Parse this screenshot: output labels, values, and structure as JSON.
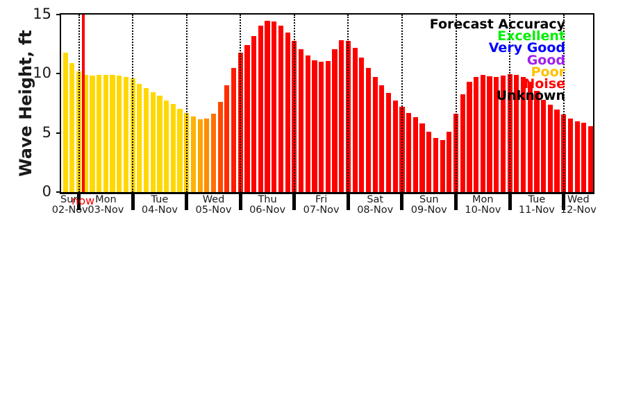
{
  "figure": {
    "background": "#ffffff",
    "now_marker": {
      "label": "now",
      "color": "#ff0000"
    }
  },
  "legend": {
    "title": "Forecast Accuracy",
    "title_color": "#000000",
    "items": [
      {
        "label": "Excellent",
        "color": "#00ee00"
      },
      {
        "label": "Very Good",
        "color": "#0000ff"
      },
      {
        "label": "Good",
        "color": "#a020f0"
      },
      {
        "label": "Poor",
        "color": "#ffc000"
      },
      {
        "label": "Noise",
        "color": "#ff0000"
      },
      {
        "label": "Unknown",
        "color": "#000000"
      }
    ]
  },
  "chart_data": {
    "type": "bar",
    "title": "",
    "xlabel": "",
    "ylabel": "Wave Height, ft",
    "ylim": [
      0,
      15
    ],
    "yticks": [
      0,
      5,
      10,
      15
    ],
    "grid": "vertical dotted lines at day boundaries",
    "legend_position": "upper right",
    "x_interval": "3-hourly wave height forecast bars",
    "days": [
      {
        "name": "Sun",
        "date": "02-Nov"
      },
      {
        "name": "Mon",
        "date": "03-Nov"
      },
      {
        "name": "Tue",
        "date": "04-Nov"
      },
      {
        "name": "Wed",
        "date": "05-Nov"
      },
      {
        "name": "Thu",
        "date": "06-Nov"
      },
      {
        "name": "Fri",
        "date": "07-Nov"
      },
      {
        "name": "Sat",
        "date": "08-Nov"
      },
      {
        "name": "Sun",
        "date": "09-Nov"
      },
      {
        "name": "Mon",
        "date": "10-Nov"
      },
      {
        "name": "Tue",
        "date": "11-Nov"
      },
      {
        "name": "Wed",
        "date": "12-Nov"
      }
    ],
    "values": [
      11.8,
      10.9,
      10.2,
      9.9,
      9.85,
      9.9,
      9.9,
      9.9,
      9.85,
      9.75,
      9.6,
      9.15,
      8.8,
      8.45,
      8.15,
      7.75,
      7.45,
      7.05,
      6.7,
      6.4,
      6.15,
      6.2,
      6.65,
      7.6,
      9.0,
      10.5,
      11.75,
      12.45,
      13.2,
      14.05,
      14.45,
      14.4,
      14.05,
      13.5,
      12.75,
      12.05,
      11.55,
      11.15,
      11.0,
      11.1,
      12.05,
      12.85,
      12.75,
      12.2,
      11.35,
      10.5,
      9.7,
      9.0,
      8.4,
      7.75,
      7.2,
      6.7,
      6.3,
      5.8,
      5.1,
      4.6,
      4.4,
      5.1,
      6.65,
      8.25,
      9.3,
      9.75,
      9.9,
      9.8,
      9.7,
      9.85,
      9.95,
      9.9,
      9.7,
      9.3,
      8.55,
      7.8,
      7.4,
      7.0,
      6.55,
      6.2,
      6.0,
      5.85,
      5.55
    ],
    "bar_colors": [
      "#ffd800",
      "#ffd800",
      "#ffd800",
      "#ffd800",
      "#ffd800",
      "#ffd800",
      "#ffd800",
      "#ffd800",
      "#ffd800",
      "#ffd800",
      "#ffd800",
      "#ffd800",
      "#ffd800",
      "#ffd800",
      "#ffd800",
      "#ffd800",
      "#ffd800",
      "#ffd800",
      "#ffcc00",
      "#ffb300",
      "#ffa500",
      "#ff8c00",
      "#ff7000",
      "#ff4800",
      "#ff2d00",
      "#ff1c00",
      "#ff0f00",
      "#ff0500",
      "#ff0000",
      "#ff0000",
      "#ff0000",
      "#ff0000",
      "#ff0000",
      "#ff0000",
      "#ff0000",
      "#ff0000",
      "#ff0000",
      "#ff0000",
      "#ff0000",
      "#ff0000",
      "#ff0000",
      "#ff0000",
      "#ff0000",
      "#ff0000",
      "#ff0000",
      "#ff0000",
      "#ff0000",
      "#ff0000",
      "#ff0000",
      "#ff0000",
      "#ff0000",
      "#ff0000",
      "#ff0000",
      "#ff0000",
      "#ff0000",
      "#ff0000",
      "#ff0000",
      "#ff0000",
      "#ff0000",
      "#ff0000",
      "#ff0000",
      "#ff0000",
      "#ff0000",
      "#ff0000",
      "#ff0000",
      "#ff0000",
      "#ff0000",
      "#ff0000",
      "#ff0000",
      "#ff0000",
      "#ff0000",
      "#ff0000",
      "#ff0000",
      "#ff0000",
      "#ff0000",
      "#ff0000",
      "#ff0000",
      "#ff0000",
      "#ff0000"
    ],
    "day_boundary_bar_centers": [
      3,
      11,
      19,
      27,
      35,
      43,
      51,
      59,
      67,
      75
    ],
    "now_line_after_bar": 3
  }
}
